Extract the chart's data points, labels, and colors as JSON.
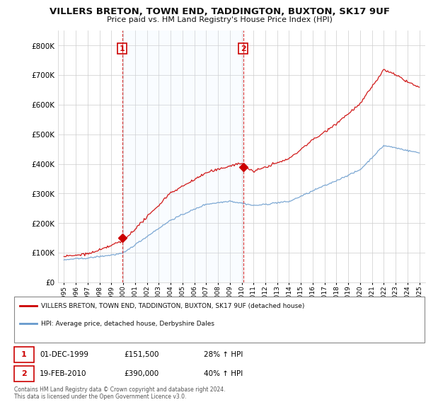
{
  "title": "VILLERS BRETON, TOWN END, TADDINGTON, BUXTON, SK17 9UF",
  "subtitle": "Price paid vs. HM Land Registry's House Price Index (HPI)",
  "legend_label_red": "VILLERS BRETON, TOWN END, TADDINGTON, BUXTON, SK17 9UF (detached house)",
  "legend_label_blue": "HPI: Average price, detached house, Derbyshire Dales",
  "red_color": "#cc0000",
  "blue_color": "#6699cc",
  "blue_fill_color": "#ddeeff",
  "sale1_date": "01-DEC-1999",
  "sale1_price": "£151,500",
  "sale1_hpi": "28% ↑ HPI",
  "sale2_date": "19-FEB-2010",
  "sale2_price": "£390,000",
  "sale2_hpi": "40% ↑ HPI",
  "footer": "Contains HM Land Registry data © Crown copyright and database right 2024.\nThis data is licensed under the Open Government Licence v3.0.",
  "ylim_min": 0,
  "ylim_max": 850000,
  "yticks": [
    0,
    100000,
    200000,
    300000,
    400000,
    500000,
    600000,
    700000,
    800000
  ],
  "sale1_year": 1999.92,
  "sale1_value": 151500,
  "sale2_year": 2010.13,
  "sale2_value": 390000,
  "xmin": 1994.5,
  "xmax": 2025.5
}
